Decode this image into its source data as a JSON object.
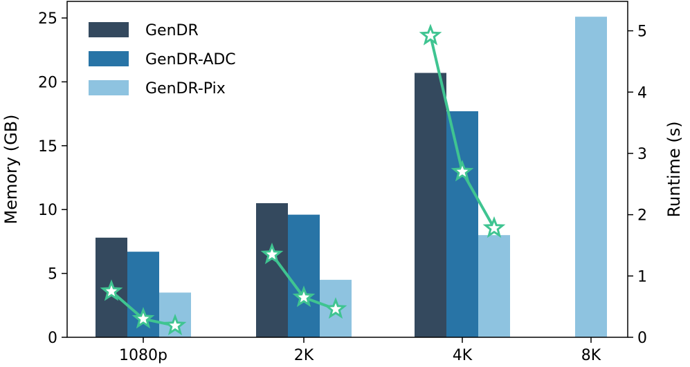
{
  "chart_data": {
    "type": "bar",
    "categories": [
      "1080p",
      "2K",
      "4K",
      "8K"
    ],
    "series": [
      {
        "name": "GenDR",
        "color": "#34495e",
        "values": [
          7.8,
          10.5,
          20.7,
          null
        ]
      },
      {
        "name": "GenDR-ADC",
        "color": "#2874a6",
        "values": [
          6.7,
          9.6,
          17.7,
          null
        ]
      },
      {
        "name": "GenDR-Pix",
        "color": "#8ec3e0",
        "values": [
          3.5,
          4.5,
          8.0,
          25.1
        ]
      }
    ],
    "runtime_series": {
      "name": "Runtime",
      "color": "#3fc491",
      "marker": "star",
      "groups": [
        {
          "category": "1080p",
          "values": [
            0.75,
            0.3,
            0.19
          ]
        },
        {
          "category": "2K",
          "values": [
            1.35,
            0.65,
            0.46
          ]
        },
        {
          "category": "4K",
          "values": [
            4.92,
            2.7,
            1.78
          ]
        }
      ]
    },
    "ylabel": "Memory (GB)",
    "y2label": "Runtime (s)",
    "ylim": [
      0,
      26.3
    ],
    "y2lim": [
      0,
      5.48
    ],
    "yticks": [
      "0",
      "5",
      "10",
      "15",
      "20",
      "25"
    ],
    "y2ticks": [
      "0",
      "1",
      "2",
      "3",
      "4",
      "5"
    ],
    "legend_position": "top-left",
    "grid": false
  }
}
